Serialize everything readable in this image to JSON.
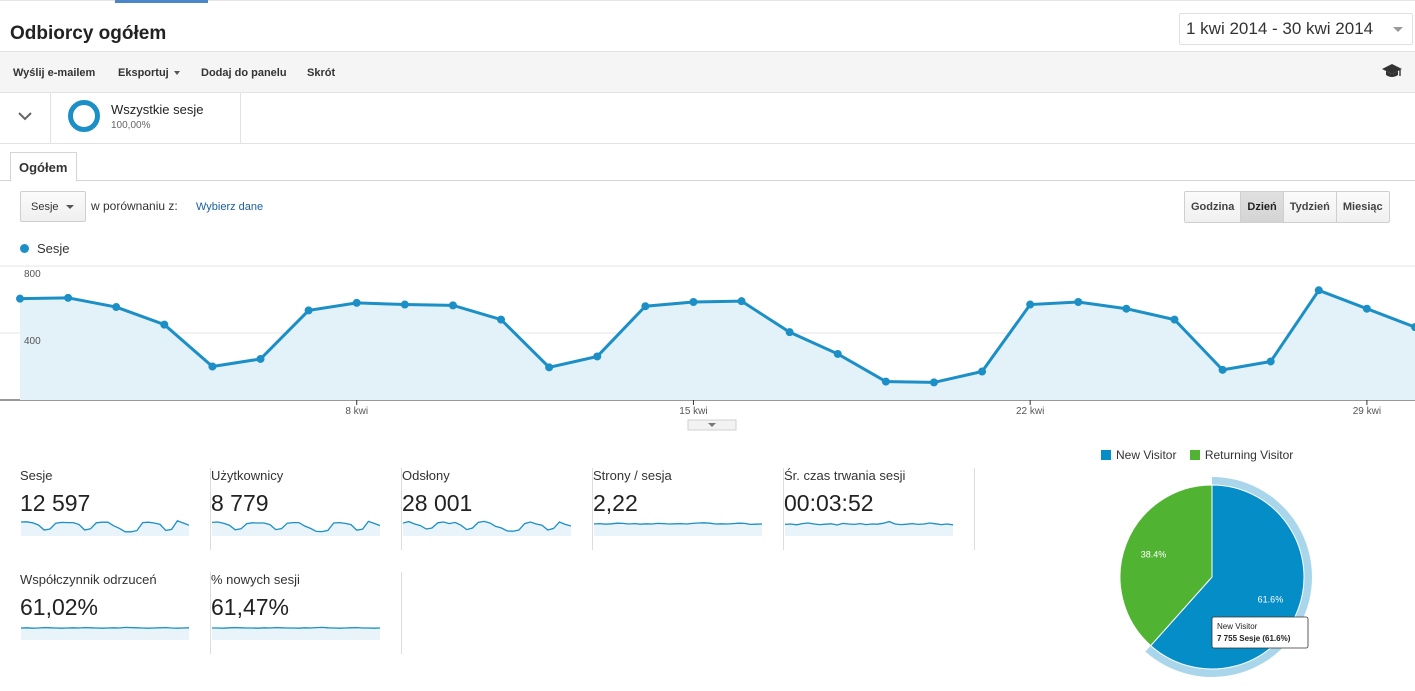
{
  "header": {
    "title": "Odbiorcy ogółem",
    "date_range": "1 kwi 2014 - 30 kwi 2014"
  },
  "toolbar": {
    "email": "Wyślij e-mailem",
    "export": "Eksportuj",
    "add_dashboard": "Dodaj do panelu",
    "shortcut": "Skrót"
  },
  "segment": {
    "name": "Wszystkie sesje",
    "percent": "100,00%"
  },
  "tabs": {
    "overview": "Ogółem"
  },
  "controls": {
    "metric": "Sesje",
    "compare_label": "w porównaniu z:",
    "choose_data": "Wybierz dane",
    "periods": [
      "Godzina",
      "Dzień",
      "Tydzień",
      "Miesiąc"
    ],
    "active_period": "Dzień"
  },
  "colors": {
    "series": "#1b8fc6",
    "area": "#e3f1f9",
    "new_visitor": "#058dc7",
    "returning_visitor": "#50b432"
  },
  "chart_data": [
    {
      "type": "area",
      "series": [
        {
          "name": "Sesje",
          "values": [
            605,
            610,
            555,
            450,
            200,
            245,
            535,
            580,
            570,
            565,
            480,
            195,
            260,
            560,
            585,
            590,
            405,
            275,
            110,
            105,
            170,
            570,
            585,
            545,
            480,
            180,
            230,
            655,
            545,
            435
          ]
        }
      ],
      "x": [
        "1 kwi",
        "2 kwi",
        "3 kwi",
        "4 kwi",
        "5 kwi",
        "6 kwi",
        "7 kwi",
        "8 kwi",
        "9 kwi",
        "10 kwi",
        "11 kwi",
        "12 kwi",
        "13 kwi",
        "14 kwi",
        "15 kwi",
        "16 kwi",
        "17 kwi",
        "18 kwi",
        "19 kwi",
        "20 kwi",
        "21 kwi",
        "22 kwi",
        "23 kwi",
        "24 kwi",
        "25 kwi",
        "26 kwi",
        "27 kwi",
        "28 kwi",
        "29 kwi",
        "30 kwi"
      ],
      "ylim": [
        0,
        800
      ],
      "yticks": [
        "800",
        "400"
      ],
      "xticks": [
        "8 kwi",
        "15 kwi",
        "22 kwi",
        "29 kwi"
      ]
    },
    {
      "type": "pie",
      "labels": [
        "New Visitor",
        "Returning Visitor"
      ],
      "values": [
        61.6,
        38.4
      ],
      "slice_labels": [
        "61.6%",
        "38.4%"
      ],
      "legend": "top",
      "tooltip": {
        "title": "New Visitor",
        "value": "7 755",
        "metric": "Sesje",
        "percent": "(61.6%)"
      }
    }
  ],
  "scorecards": [
    {
      "label": "Sesje",
      "value": "12 597",
      "spark": [
        60,
        61,
        56,
        45,
        20,
        25,
        54,
        58,
        57,
        57,
        48,
        20,
        26,
        56,
        59,
        59,
        41,
        28,
        11,
        11,
        17,
        57,
        59,
        55,
        48,
        18,
        23,
        66,
        55,
        44
      ]
    },
    {
      "label": "Użytkownicy",
      "value": "8 779",
      "spark": [
        58,
        60,
        54,
        44,
        21,
        26,
        52,
        56,
        55,
        55,
        47,
        22,
        27,
        54,
        57,
        57,
        40,
        28,
        13,
        12,
        18,
        55,
        57,
        53,
        47,
        19,
        24,
        63,
        53,
        42
      ]
    },
    {
      "label": "Odsłony",
      "value": "28 001",
      "spark": [
        55,
        62,
        50,
        42,
        25,
        30,
        56,
        60,
        52,
        58,
        44,
        22,
        30,
        58,
        63,
        55,
        38,
        30,
        15,
        14,
        20,
        52,
        60,
        50,
        44,
        20,
        28,
        60,
        48,
        40
      ]
    },
    {
      "label": "Strony / sesja",
      "value": "2,22",
      "spark": [
        50,
        52,
        49,
        51,
        54,
        53,
        50,
        52,
        49,
        51,
        50,
        53,
        52,
        50,
        51,
        52,
        50,
        53,
        55,
        56,
        54,
        50,
        51,
        50,
        52,
        54,
        53,
        48,
        49,
        50
      ]
    },
    {
      "label": "Śr. czas trwania sesji",
      "value": "00:03:52",
      "spark": [
        48,
        50,
        46,
        52,
        55,
        50,
        47,
        49,
        51,
        45,
        53,
        50,
        48,
        52,
        47,
        50,
        49,
        54,
        62,
        50,
        47,
        49,
        52,
        48,
        50,
        55,
        51,
        47,
        50,
        46
      ]
    },
    {
      "label": "Współczynnik odrzuceń",
      "value": "61,02%",
      "spark": [
        50,
        51,
        49,
        50,
        52,
        51,
        50,
        49,
        50,
        51,
        50,
        52,
        51,
        50,
        49,
        50,
        51,
        50,
        53,
        52,
        51,
        50,
        49,
        50,
        51,
        52,
        50,
        49,
        50,
        51
      ]
    },
    {
      "label": "% nowych sesji",
      "value": "61,47%",
      "spark": [
        50,
        50,
        49,
        51,
        52,
        51,
        50,
        50,
        49,
        51,
        50,
        52,
        51,
        50,
        50,
        49,
        51,
        50,
        52,
        53,
        51,
        50,
        49,
        50,
        51,
        52,
        50,
        50,
        49,
        50
      ]
    }
  ]
}
